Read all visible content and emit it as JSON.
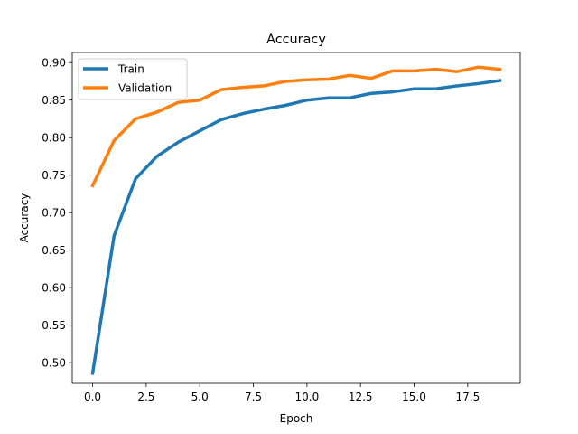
{
  "chart_data": {
    "type": "line",
    "title": "Accuracy",
    "xlabel": "Epoch",
    "ylabel": "Accuracy",
    "xlim": [
      -0.95,
      19.95
    ],
    "ylim": [
      0.4725,
      0.9135
    ],
    "xticks": [
      0.0,
      2.5,
      5.0,
      7.5,
      10.0,
      12.5,
      15.0,
      17.5
    ],
    "xtick_labels": [
      "0.0",
      "2.5",
      "5.0",
      "7.5",
      "10.0",
      "12.5",
      "15.0",
      "17.5"
    ],
    "yticks": [
      0.5,
      0.55,
      0.6,
      0.65,
      0.7,
      0.75,
      0.8,
      0.85,
      0.9
    ],
    "ytick_labels": [
      "0.50",
      "0.55",
      "0.60",
      "0.65",
      "0.70",
      "0.75",
      "0.80",
      "0.85",
      "0.90"
    ],
    "grid": false,
    "legend_position": "top-left",
    "x": [
      0,
      1,
      2,
      3,
      4,
      5,
      6,
      7,
      8,
      9,
      10,
      11,
      12,
      13,
      14,
      15,
      16,
      17,
      18,
      19
    ],
    "series": [
      {
        "name": "Train",
        "color": "#1f77b4",
        "values": [
          0.486,
          0.669,
          0.745,
          0.775,
          0.794,
          0.809,
          0.824,
          0.832,
          0.838,
          0.843,
          0.85,
          0.853,
          0.853,
          0.859,
          0.861,
          0.865,
          0.865,
          0.869,
          0.872,
          0.876
        ]
      },
      {
        "name": "Validation",
        "color": "#ff7f0e",
        "values": [
          0.736,
          0.796,
          0.825,
          0.834,
          0.847,
          0.85,
          0.864,
          0.867,
          0.869,
          0.875,
          0.877,
          0.878,
          0.883,
          0.879,
          0.889,
          0.889,
          0.891,
          0.888,
          0.894,
          0.891
        ]
      }
    ]
  }
}
